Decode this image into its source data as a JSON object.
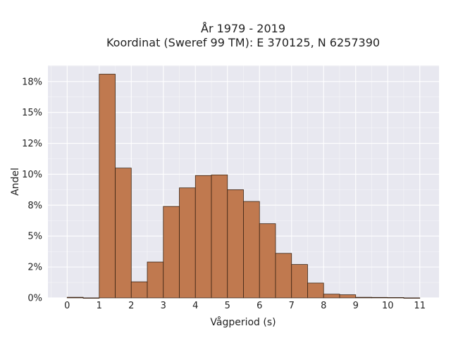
{
  "chart_data": {
    "type": "bar",
    "title_line1": "År 1979 - 2019",
    "title_line2": "Koordinat (Sweref 99 TM): E 370125, N 6257390",
    "xlabel": "Vågperiod (s)",
    "ylabel": "Andel",
    "bin_width": 0.5,
    "bins_start": [
      0,
      0.5,
      1,
      1.5,
      2,
      2.5,
      3,
      3.5,
      4,
      4.5,
      5,
      5.5,
      6,
      6.5,
      7,
      7.5,
      8,
      8.5,
      9,
      9.5,
      10,
      10.5
    ],
    "values": [
      0.05,
      0,
      18.1,
      10.5,
      1.3,
      2.9,
      7.4,
      8.9,
      9.9,
      9.95,
      8.75,
      7.8,
      6.0,
      3.6,
      2.7,
      1.2,
      0.3,
      0.25,
      0.05,
      0.04,
      0.03,
      0
    ],
    "xlim": [
      -0.6,
      11.6
    ],
    "ylim": [
      0,
      18.8
    ],
    "xticks": [
      0,
      1,
      2,
      3,
      4,
      5,
      6,
      7,
      8,
      9,
      10,
      11
    ],
    "yticks": [
      0,
      2.5,
      5,
      7.5,
      10,
      12.5,
      15,
      17.5
    ],
    "ytick_labels": [
      "0%",
      "2%",
      "5%",
      "8%",
      "10%",
      "12%",
      "15%",
      "18%"
    ],
    "grid": true,
    "legend": "none",
    "colors": {
      "bar_fill": "#c0794f",
      "bar_edge": "#3a2414",
      "plot_bg": "#e8e8f0",
      "grid": "#ffffff"
    }
  }
}
